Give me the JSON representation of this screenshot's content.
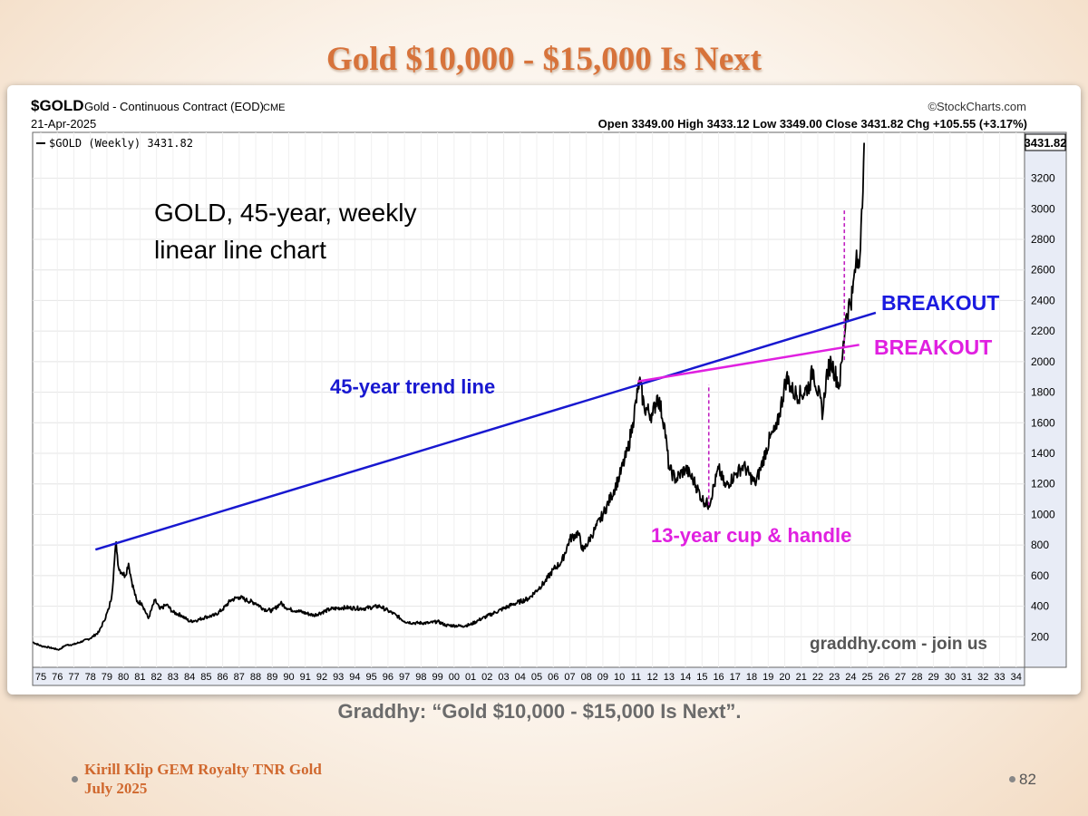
{
  "slide": {
    "title": "Gold $10,000 - $15,000 Is Next",
    "caption": "Graddhy: “Gold $10,000 - $15,000 Is Next”.",
    "footer_line1": "Kirill Klip GEM Royalty TNR Gold",
    "footer_line2": "July 2025",
    "page_number": "82"
  },
  "header": {
    "symbol": "$GOLD",
    "description": "Gold - Continuous Contract (EOD)",
    "exchange": "CME",
    "source": "©StockCharts.com",
    "date": "21-Apr-2025",
    "ohlc": "Open 3349.00  High 3433.12  Low 3349.00  Close 3431.82  Chg +105.55 (+3.17%)",
    "legend": "$GOLD (Weekly) 3431.82",
    "last_price": "3431.82"
  },
  "annotations": {
    "heading_line1": "GOLD, 45-year, weekly",
    "heading_line2": "linear line chart",
    "trend_label": "45-year trend line",
    "breakout_blue": "BREAKOUT",
    "breakout_magenta": "BREAKOUT",
    "cup_label": "13-year cup & handle",
    "watermark": "graddhy.com - join us"
  },
  "colors": {
    "title": "#d7733b",
    "trend_line": "#1818d0",
    "breakout_blue": "#1a1ae0",
    "magenta": "#e020e0",
    "price_line": "#000000"
  },
  "chart_data": {
    "type": "line",
    "series": [
      {
        "name": "$GOLD (Weekly)",
        "x": [
          1975.0,
          1975.5,
          1976.0,
          1976.6,
          1977.0,
          1977.5,
          1978.0,
          1978.5,
          1979.0,
          1979.3,
          1979.6,
          1979.8,
          1979.95,
          1980.05,
          1980.2,
          1980.4,
          1980.6,
          1980.8,
          1981.0,
          1981.3,
          1981.6,
          1982.0,
          1982.4,
          1982.7,
          1983.1,
          1983.5,
          1984.0,
          1984.5,
          1985.0,
          1985.5,
          1986.0,
          1986.5,
          1987.0,
          1987.5,
          1987.9,
          1988.5,
          1989.0,
          1989.5,
          1990.0,
          1990.5,
          1991.0,
          1992.0,
          1993.0,
          1993.7,
          1994.0,
          1995.0,
          1996.0,
          1996.5,
          1997.0,
          1997.5,
          1998.0,
          1999.0,
          1999.5,
          2000.0,
          2001.0,
          2001.5,
          2002.0,
          2003.0,
          2004.0,
          2005.0,
          2006.0,
          2006.5,
          2007.0,
          2007.5,
          2008.0,
          2008.3,
          2008.8,
          2009.0,
          2009.5,
          2010.0,
          2010.5,
          2011.0,
          2011.3,
          2011.6,
          2011.7,
          2012.0,
          2012.5,
          2012.8,
          2013.2,
          2013.5,
          2013.9,
          2014.5,
          2015.0,
          2015.5,
          2015.9,
          2016.5,
          2016.9,
          2017.5,
          2018.0,
          2018.7,
          2019.0,
          2019.6,
          2020.0,
          2020.6,
          2021.0,
          2021.5,
          2022.0,
          2022.2,
          2022.8,
          2023.0,
          2023.3,
          2023.8,
          2024.0,
          2024.2,
          2024.6,
          2024.8,
          2025.0,
          2025.15,
          2025.3
        ],
        "y": [
          165,
          140,
          130,
          115,
          145,
          150,
          170,
          190,
          230,
          300,
          380,
          480,
          700,
          820,
          650,
          620,
          600,
          680,
          560,
          430,
          420,
          320,
          440,
          380,
          410,
          360,
          340,
          300,
          310,
          330,
          340,
          380,
          440,
          460,
          440,
          420,
          380,
          370,
          420,
          380,
          370,
          340,
          380,
          390,
          390,
          385,
          400,
          370,
          340,
          300,
          290,
          290,
          300,
          275,
          270,
          280,
          310,
          360,
          410,
          450,
          560,
          640,
          690,
          840,
          880,
          760,
          860,
          900,
          1000,
          1120,
          1250,
          1420,
          1600,
          1800,
          1880,
          1700,
          1650,
          1780,
          1600,
          1300,
          1230,
          1300,
          1220,
          1100,
          1060,
          1300,
          1180,
          1260,
          1320,
          1200,
          1290,
          1500,
          1560,
          1900,
          1800,
          1780,
          1850,
          1950,
          1660,
          1900,
          2000,
          1840,
          2050,
          2300,
          2450,
          2650,
          2620,
          3000,
          3431.82
        ]
      }
    ],
    "trend_line": {
      "x": [
        1978.8,
        2026.0
      ],
      "y": [
        770,
        2320
      ],
      "label": "45-year trend line"
    },
    "handle_line": {
      "x": [
        2011.6,
        2025.0
      ],
      "y": [
        1870,
        2110
      ],
      "label": "BREAKOUT"
    },
    "dashed_lines": [
      {
        "x": 2015.9,
        "y": [
          1060,
          1850
        ]
      },
      {
        "x": 2024.1,
        "y": [
          2010,
          3000
        ]
      }
    ],
    "xlim": [
      1975,
      2035
    ],
    "ylim": [
      0,
      3500
    ],
    "x_ticks": [
      "75",
      "76",
      "77",
      "78",
      "79",
      "80",
      "81",
      "82",
      "83",
      "84",
      "85",
      "86",
      "87",
      "88",
      "89",
      "90",
      "91",
      "92",
      "93",
      "94",
      "95",
      "96",
      "97",
      "98",
      "99",
      "00",
      "01",
      "02",
      "03",
      "04",
      "05",
      "06",
      "07",
      "08",
      "09",
      "10",
      "11",
      "12",
      "13",
      "14",
      "15",
      "16",
      "17",
      "18",
      "19",
      "20",
      "21",
      "22",
      "23",
      "24",
      "25",
      "26",
      "27",
      "28",
      "29",
      "30",
      "31",
      "32",
      "33",
      "34"
    ],
    "y_ticks": [
      200,
      400,
      600,
      800,
      1000,
      1200,
      1400,
      1600,
      1800,
      2000,
      2200,
      2400,
      2600,
      2800,
      3000,
      3200
    ],
    "grid": true
  }
}
